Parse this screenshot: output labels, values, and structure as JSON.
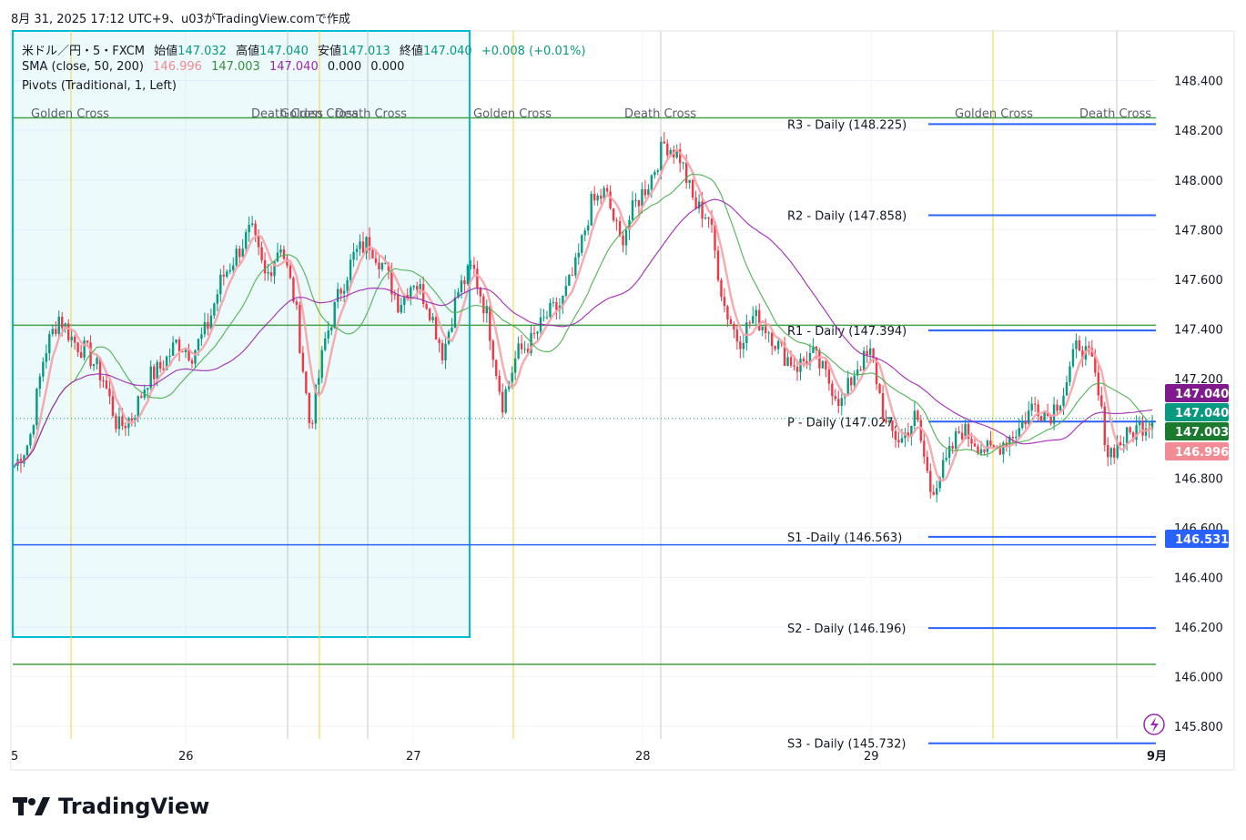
{
  "header": {
    "snapshot_info": "8月 31, 2025 17:12 UTC+9、u03がTradingView.comで作成"
  },
  "legend": {
    "symbol": "米ドル／円・5・FXCM",
    "open_label": "始値",
    "open": "147.032",
    "high_label": "高値",
    "high": "147.040",
    "low_label": "安値",
    "low": "147.013",
    "close_label": "終値",
    "close": "147.040",
    "change": "+0.008 (+0.01%)",
    "sma_label": "SMA (close, 50, 200)",
    "sma1": "146.996",
    "sma2": "147.003",
    "sma3": "147.040",
    "sma4": "0.000",
    "sma5": "0.000",
    "pivots_label": "Pivots (Traditional, 1, Left)"
  },
  "colors": {
    "up": "#089981",
    "down": "#f23645",
    "sma_fast": "#f5a3a8",
    "sma_mid": "#4caf50",
    "sma_slow": "#9c27b0",
    "pivot": "#2962ff",
    "hline": "#43a047",
    "box": "#00bcd4",
    "cross_line": "#f4d03f"
  },
  "brand": {
    "name": "TradingView",
    "icon": "tradingview-logo-icon"
  },
  "chart_data": {
    "type": "candlestick",
    "symbol": "USDJPY 5m",
    "x_labels": [
      "5",
      "26",
      "27",
      "28",
      "29",
      "9月"
    ],
    "y_ticks": [
      "148.400",
      "148.200",
      "148.000",
      "147.800",
      "147.600",
      "147.400",
      "147.200",
      "146.800",
      "146.600",
      "146.400",
      "146.200",
      "146.000",
      "145.800"
    ],
    "ylim": [
      145.72,
      148.6
    ],
    "price_badges": [
      {
        "value": "147.040",
        "color": "#801b8e"
      },
      {
        "value": "147.040",
        "color": "#089981"
      },
      {
        "value": "147.003",
        "color": "#1b7a2e"
      },
      {
        "value": "146.996",
        "color": "#f28b93"
      },
      {
        "value": "146.531",
        "color": "#2962ff"
      }
    ],
    "pivot_levels": [
      {
        "label": "R3 - Daily (148.225)",
        "value": 148.225
      },
      {
        "label": "R2 - Daily (147.858)",
        "value": 147.858
      },
      {
        "label": "R1 - Daily (147.394)",
        "value": 147.394
      },
      {
        "label": "P - Daily (147.027)",
        "value": 147.027
      },
      {
        "label": "S1 -Daily (146.563)",
        "value": 146.563
      },
      {
        "label": "S2 - Daily (146.196)",
        "value": 146.196
      },
      {
        "label": "S3 - Daily (145.732)",
        "value": 145.732
      }
    ],
    "horizontal_lines": [
      148.25,
      147.415,
      146.531,
      146.05
    ],
    "cross_labels": [
      "Golden Cross",
      "Death Cross",
      "Golden Cross",
      "Death Cross",
      "Golden Cross",
      "Death Cross",
      "Golden Cross",
      "Death Cross"
    ],
    "close_path": [
      146.85,
      146.95,
      147.3,
      147.45,
      147.35,
      147.3,
      147.2,
      147.0,
      147.05,
      147.2,
      147.25,
      147.35,
      147.3,
      147.4,
      147.6,
      147.7,
      147.8,
      147.6,
      147.75,
      147.5,
      147.0,
      147.35,
      147.55,
      147.7,
      147.75,
      147.65,
      147.5,
      147.6,
      147.5,
      147.3,
      147.55,
      147.65,
      147.45,
      147.1,
      147.3,
      147.35,
      147.45,
      147.5,
      147.65,
      147.9,
      147.95,
      147.75,
      147.9,
      148.0,
      148.15,
      148.1,
      147.9,
      147.85,
      147.5,
      147.35,
      147.45,
      147.4,
      147.3,
      147.25,
      147.3,
      147.2,
      147.1,
      147.25,
      147.3,
      147.0,
      146.95,
      147.05,
      146.75,
      146.85,
      147.0,
      146.95,
      146.9,
      146.95,
      147.0,
      147.1,
      147.05,
      147.15,
      147.35,
      147.25,
      146.9,
      146.95,
      147.0,
      147.04
    ]
  }
}
